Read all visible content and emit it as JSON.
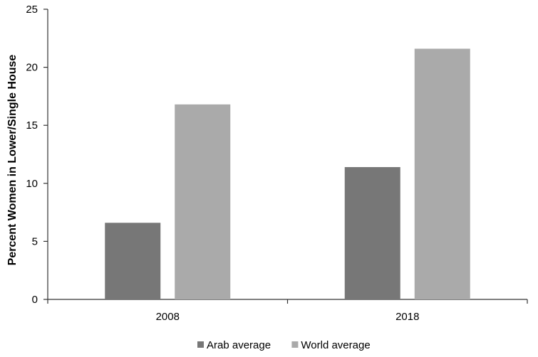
{
  "chart_data": {
    "type": "bar",
    "categories": [
      "2008",
      "2018"
    ],
    "series": [
      {
        "name": "Arab average",
        "values": [
          6.6,
          11.4
        ],
        "color": "#777777"
      },
      {
        "name": "World average",
        "values": [
          16.8,
          21.6
        ],
        "color": "#aaaaaa"
      }
    ],
    "xlabel": "",
    "ylabel": "Percent Women in Lower/Single House",
    "ylim": [
      0,
      25
    ],
    "yticks": [
      0,
      5,
      10,
      15,
      20,
      25
    ],
    "grid": false,
    "legend_position": "bottom"
  }
}
